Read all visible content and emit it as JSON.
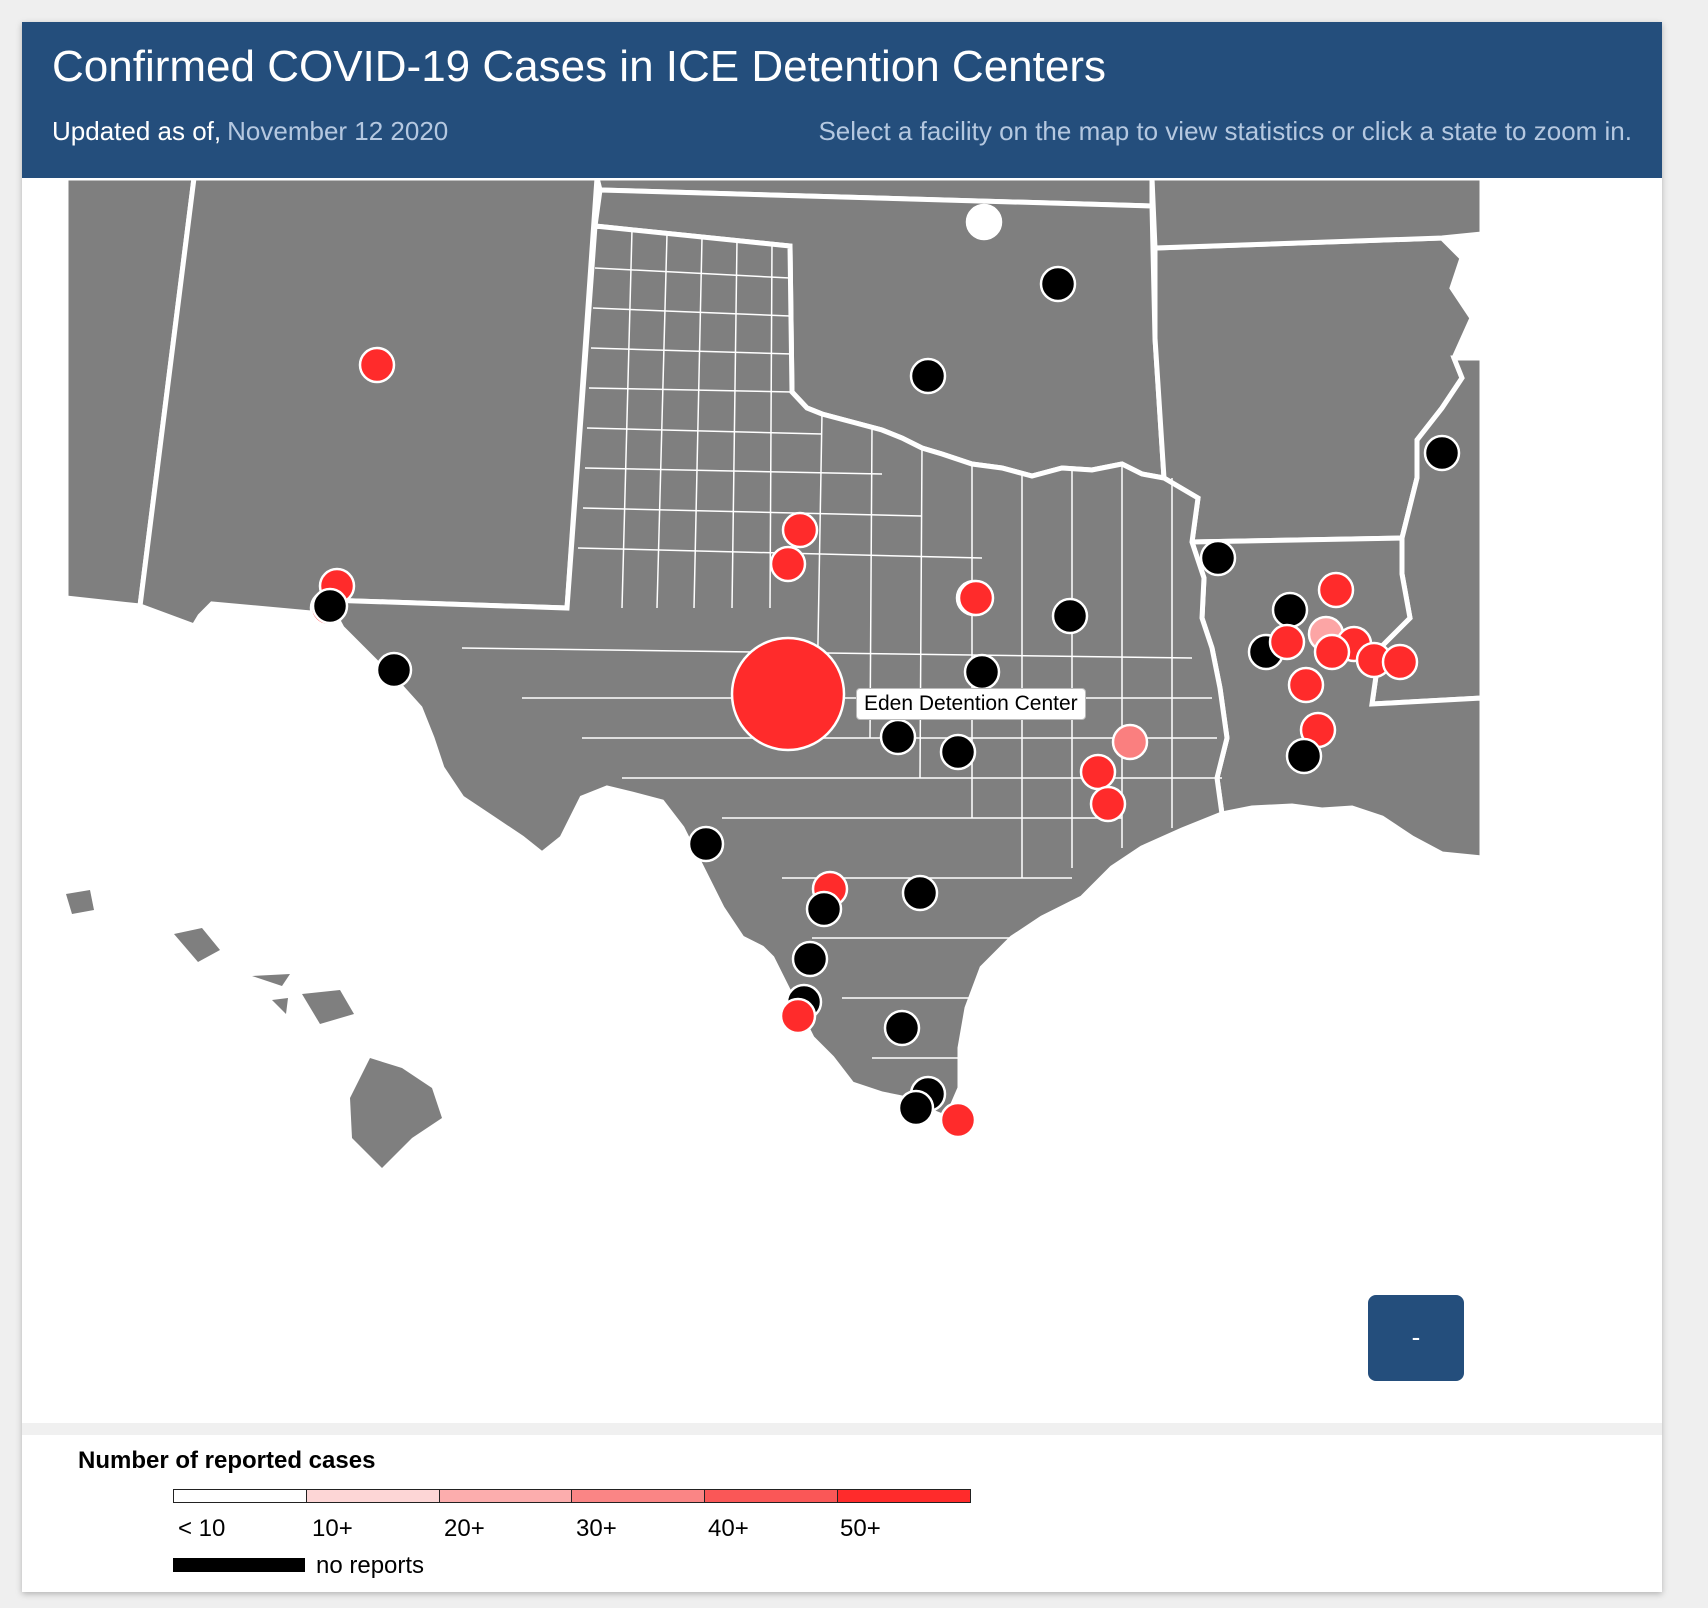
{
  "header": {
    "title": "Confirmed COVID-19 Cases in ICE Detention Centers",
    "updated_label": "Updated as of,",
    "updated_date": "November 12 2020",
    "instructions": "Select a facility on the map to view statistics or click a state to zoom in."
  },
  "map": {
    "land_color": "#7f7f7f",
    "border_color": "#ffffff",
    "tooltip": "Eden Detention Center",
    "zoom_button_label": "-",
    "facility_marker_colors": {
      "no_reports": "#000000",
      "under_10": "#ffffff",
      "20_plus": "#fca5a5",
      "30_plus": "#fa7f7f",
      "50_plus": "#ff2b2b"
    }
  },
  "legend": {
    "title": "Number of reported cases",
    "bins": [
      {
        "label": "< 10",
        "color": "#ffffff"
      },
      {
        "label": "10+",
        "color": "#fdd6d6"
      },
      {
        "label": "20+",
        "color": "#fcadad"
      },
      {
        "label": "30+",
        "color": "#fa8585"
      },
      {
        "label": "40+",
        "color": "#fa5757"
      },
      {
        "label": "50+",
        "color": "#ff2b2b"
      }
    ],
    "no_reports_label": "no reports",
    "no_reports_color": "#000000"
  }
}
